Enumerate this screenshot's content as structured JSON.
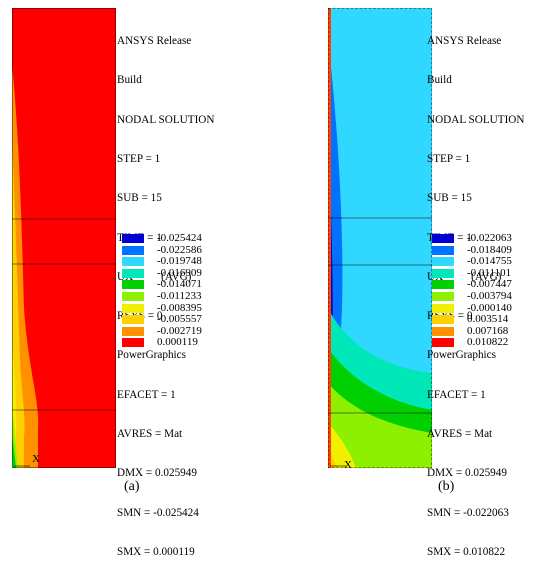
{
  "panels": [
    {
      "caption": "(a)",
      "axis_label": "X",
      "info": [
        "ANSYS Release",
        "Build",
        "NODAL SOLUTION",
        "STEP = 1",
        "SUB = 15",
        "TIME = 1",
        "UX          (AVG)",
        "RSYS = 0",
        "PowerGraphics",
        "EFACET = 1",
        "AVRES = Mat",
        "DMX = 0.025949",
        "SMN = -0.025424",
        "SMX = 0.000119"
      ],
      "legend": [
        {
          "value": "-0.025424",
          "color": "#0000d8"
        },
        {
          "value": "-0.022586",
          "color": "#0072ff"
        },
        {
          "value": "-0.019748",
          "color": "#30d8ff"
        },
        {
          "value": "-0.016909",
          "color": "#00e8b8"
        },
        {
          "value": "-0.014071",
          "color": "#00d000"
        },
        {
          "value": "-0.011233",
          "color": "#8cf000"
        },
        {
          "value": "-0.008395",
          "color": "#f0f000"
        },
        {
          "value": "-0.005557",
          "color": "#ffd000"
        },
        {
          "value": "-0.002719",
          "color": "#ff9000"
        },
        {
          "value": "0.000119",
          "color": "#ff0000"
        }
      ]
    },
    {
      "caption": "(b)",
      "axis_label": "X",
      "info": [
        "ANSYS Release",
        "Build",
        "NODAL SOLUTION",
        "STEP = 1",
        "SUB = 15",
        "TIME = 1",
        "UX          (AVG)",
        "RSYS = 0",
        "PowerGraphics",
        "EFACET = 1",
        "AVRES = Mat",
        "DMX = 0.025949",
        "SMN = -0.022063",
        "SMX = 0.010822"
      ],
      "legend": [
        {
          "value": "-0.022063",
          "color": "#0000d8"
        },
        {
          "value": "-0.018409",
          "color": "#0072ff"
        },
        {
          "value": "-0.014755",
          "color": "#30d8ff"
        },
        {
          "value": "-0.011101",
          "color": "#00e8b8"
        },
        {
          "value": "-0.007447",
          "color": "#00d000"
        },
        {
          "value": "-0.003794",
          "color": "#8cf000"
        },
        {
          "value": "-0.000140",
          "color": "#f0f000"
        },
        {
          "value": "0.003514",
          "color": "#ffd000"
        },
        {
          "value": "0.007168",
          "color": "#ff9000"
        },
        {
          "value": "0.010822",
          "color": "#ff0000"
        }
      ]
    }
  ]
}
